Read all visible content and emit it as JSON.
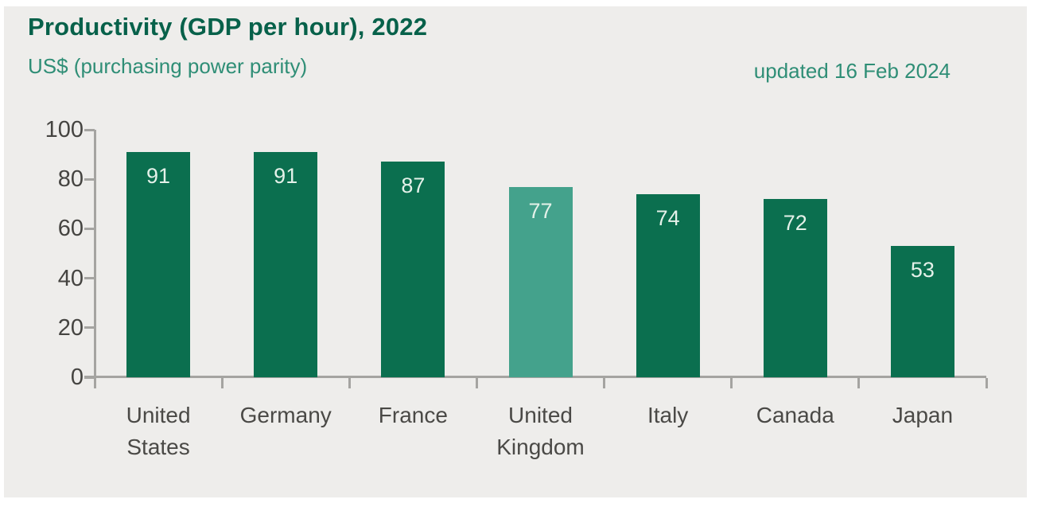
{
  "header": {
    "title": "Productivity (GDP per hour), 2022",
    "subtitle": "US$ (purchasing power parity)",
    "updated": "updated 16 Feb 2024"
  },
  "colors": {
    "panel_background": "#eeedeb",
    "page_border": "#ffffff",
    "title_text": "#07614a",
    "subtitle_text": "#2f8e76",
    "updated_text": "#2f8e76",
    "bar_default": "#0b6f4f",
    "bar_highlight": "#44a28c",
    "bar_value_text": "#e4f1e9",
    "axis_line": "#a5a4a1",
    "axis_text": "#454441"
  },
  "chart_data": {
    "type": "bar",
    "title": "Productivity (GDP per hour), 2022",
    "ylabel": "US$ (purchasing power parity)",
    "xlabel": "",
    "categories": [
      "United States",
      "Germany",
      "France",
      "United Kingdom",
      "Italy",
      "Canada",
      "Japan"
    ],
    "categories_lines": [
      [
        "United",
        "States"
      ],
      [
        "Germany"
      ],
      [
        "France"
      ],
      [
        "United",
        "Kingdom"
      ],
      [
        "Italy"
      ],
      [
        "Canada"
      ],
      [
        "Japan"
      ]
    ],
    "values": [
      91,
      91,
      87,
      77,
      74,
      72,
      53
    ],
    "data_labels": [
      91,
      91,
      87,
      77,
      74,
      72,
      53
    ],
    "highlight_index": 3,
    "highlight_category": "United Kingdom",
    "ylim": [
      0,
      100
    ],
    "yticks": [
      0,
      20,
      40,
      60,
      80,
      100
    ],
    "grid": false,
    "legend": null,
    "annotation": "updated 16 Feb 2024"
  }
}
